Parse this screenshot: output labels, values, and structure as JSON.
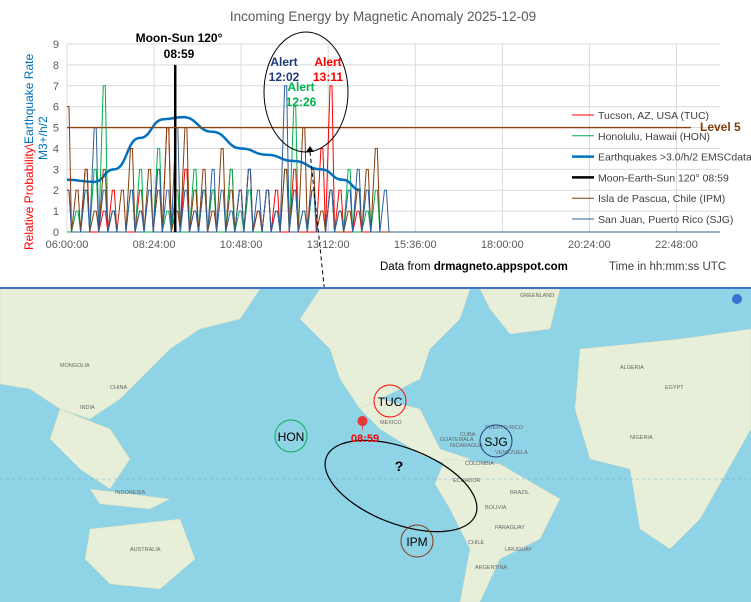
{
  "chart_data": {
    "type": "line",
    "title": "Incoming Energy by Magnetic Anomaly 2025-12-09",
    "ylabel_part1": "Relative Probability\\",
    "ylabel_part2": "Earthquake Rate",
    "ylabel_line2": "M3+/h/2",
    "xlabel": "Time in hh:mm:ss UTC",
    "source_prefix": "Data from ",
    "source_site": "drmagneto.appspot.com",
    "ylim": [
      0,
      9
    ],
    "yticks": [
      "0",
      "1",
      "2",
      "3",
      "4",
      "5",
      "6",
      "7",
      "8",
      "9"
    ],
    "xlim_hours": [
      6,
      24
    ],
    "xticks": [
      {
        "h": 6,
        "label": "06:00:00"
      },
      {
        "h": 8.4,
        "label": "08:24:00"
      },
      {
        "h": 10.8,
        "label": "10:48:00"
      },
      {
        "h": 13.2,
        "label": "13:12:00"
      },
      {
        "h": 15.6,
        "label": "15:36:00"
      },
      {
        "h": 18,
        "label": "18:00:00"
      },
      {
        "h": 20.4,
        "label": "20:24:00"
      },
      {
        "h": 22.8,
        "label": "22:48:00"
      }
    ],
    "level_line": {
      "value": 5,
      "label": "Level 5",
      "end_h": 23.2,
      "color": "#8b4513"
    },
    "moon_line": {
      "h": 8.983,
      "value": 8,
      "label1": "Moon-Sun 120°",
      "label2": "08:59"
    },
    "alerts": [
      {
        "title": "Alert",
        "time": "12:02",
        "h": 12.03,
        "color": "#1f3a78"
      },
      {
        "title": "Alert",
        "time": "13:11",
        "h": 13.18,
        "color": "#ff0000"
      },
      {
        "title": "Alert",
        "time": "12:26",
        "h": 12.43,
        "color": "#00b050"
      }
    ],
    "station_start_h": 6,
    "station_step_h": 0.25,
    "series": [
      {
        "name": "Tucson, AZ, USA (TUC)",
        "color": "#ff0000",
        "width": 1,
        "values": [
          2,
          0,
          3,
          0,
          1,
          2,
          0,
          0,
          2,
          0,
          3,
          5,
          2,
          3,
          1,
          2,
          2,
          0,
          3,
          2,
          3,
          1,
          2,
          2,
          0,
          3,
          0,
          0,
          4,
          7,
          2,
          0,
          1,
          0,
          0,
          0
        ]
      },
      {
        "name": "Honolulu, Hawaii (HON)",
        "color": "#00b050",
        "width": 1,
        "values": [
          0,
          1,
          2,
          3,
          7,
          1,
          0,
          2,
          3,
          0,
          4,
          1,
          2,
          0,
          3,
          2,
          2,
          0,
          3,
          1,
          2,
          0,
          2,
          1,
          3,
          6,
          1,
          2,
          0,
          2,
          1,
          3,
          0,
          1,
          2,
          0
        ]
      },
      {
        "name": "Earthquakes >3.0/h/2 EMSCdata",
        "color": "#0070c0",
        "width": 2.5,
        "curve": [
          [
            6,
            2.5
          ],
          [
            6.75,
            2.4
          ],
          [
            7.3,
            3
          ],
          [
            8,
            4.5
          ],
          [
            8.67,
            5.4
          ],
          [
            9.2,
            5.5
          ],
          [
            10,
            4.8
          ],
          [
            10.8,
            4.0
          ],
          [
            11.5,
            3.7
          ],
          [
            12.25,
            3.4
          ],
          [
            13,
            3.0
          ],
          [
            13.6,
            2.5
          ],
          [
            14.1,
            2.0
          ]
        ]
      },
      {
        "name": "Moon-Earth-Sun 120° 08:59",
        "color": "#000000",
        "width": 2.5
      },
      {
        "name": "Isla de Pascua, Chile (IPM)",
        "color": "#843c0c",
        "width": 1,
        "values": [
          6,
          2,
          3,
          1,
          3,
          1,
          2,
          4,
          1,
          3,
          2,
          5,
          1,
          5,
          2,
          3,
          1,
          4,
          2,
          2,
          3,
          1,
          2,
          1,
          3,
          2,
          5,
          3,
          1,
          2,
          0,
          1,
          2,
          3,
          4,
          0
        ]
      },
      {
        "name": "San Juan, Puerto Rico (SJG)",
        "color": "#2e5f9e",
        "width": 1,
        "values": [
          2,
          0,
          2,
          5,
          2,
          1,
          0,
          2,
          1,
          2,
          3,
          2,
          5,
          2,
          1,
          2,
          3,
          2,
          1,
          2,
          3,
          2,
          2,
          1,
          7,
          2,
          1,
          2,
          0,
          2,
          1,
          2,
          3,
          2,
          0,
          2
        ]
      }
    ]
  },
  "map": {
    "marker_time": "08:59",
    "question": "?",
    "stations": [
      {
        "code": "TUC",
        "color": "#ff0000"
      },
      {
        "code": "HON",
        "color": "#00b050"
      },
      {
        "code": "SJG",
        "color": "#1f3a78"
      },
      {
        "code": "IPM",
        "color": "#843c0c"
      }
    ],
    "labels": [
      "GREENLAND",
      "MONGOLIA",
      "CHINA",
      "INDIA",
      "INDONESIA",
      "AUSTRALIA",
      "MEXICO",
      "CUBA",
      "GUATEMALA",
      "NICARAGUA",
      "VENEZUELA",
      "COLOMBIA",
      "ECUADOR",
      "BRAZIL",
      "BOLIVIA",
      "PARAGUAY",
      "CHILE",
      "URUGUAY",
      "ARGENTINA",
      "PUERTO RICO",
      "EGYPT",
      "ALGERIA",
      "NIGERIA"
    ]
  }
}
